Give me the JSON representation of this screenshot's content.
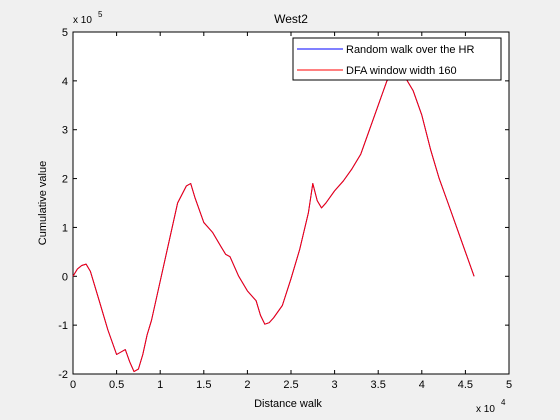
{
  "chart_data": {
    "type": "line",
    "title": "West2",
    "xlabel": "Distance walk",
    "ylabel": "Cumulative value",
    "x_multiplier_label": "x 10",
    "x_multiplier_exp": "4",
    "y_multiplier_label": "x 10",
    "y_multiplier_exp": "5",
    "xlim": [
      0,
      5
    ],
    "ylim": [
      -2,
      5
    ],
    "x_ticks": [
      0,
      0.5,
      1,
      1.5,
      2,
      2.5,
      3,
      3.5,
      4,
      4.5,
      5
    ],
    "x_tick_labels": [
      "0",
      "0.5",
      "1",
      "1.5",
      "2",
      "2.5",
      "3",
      "3.5",
      "4",
      "4.5",
      "5"
    ],
    "y_ticks": [
      -2,
      -1,
      0,
      1,
      2,
      3,
      4,
      5
    ],
    "y_tick_labels": [
      "-2",
      "-1",
      "0",
      "1",
      "2",
      "3",
      "4",
      "5"
    ],
    "grid": false,
    "legend_position": "top-right",
    "series": [
      {
        "name": "Random walk over the HR",
        "color": "#0000ff",
        "x": [
          0,
          0.05,
          0.1,
          0.15,
          0.2,
          0.3,
          0.4,
          0.5,
          0.55,
          0.6,
          0.65,
          0.7,
          0.75,
          0.8,
          0.85,
          0.9,
          1.0,
          1.1,
          1.2,
          1.3,
          1.35,
          1.4,
          1.5,
          1.55,
          1.6,
          1.7,
          1.75,
          1.8,
          1.9,
          2.0,
          2.1,
          2.15,
          2.2,
          2.25,
          2.3,
          2.4,
          2.5,
          2.6,
          2.7,
          2.75,
          2.8,
          2.85,
          2.9,
          3.0,
          3.1,
          3.2,
          3.3,
          3.4,
          3.5,
          3.6,
          3.7,
          3.75,
          3.8,
          3.9,
          4.0,
          4.1,
          4.2,
          4.3,
          4.4,
          4.5,
          4.6
        ],
        "y": [
          0,
          0.15,
          0.22,
          0.25,
          0.1,
          -0.5,
          -1.1,
          -1.6,
          -1.55,
          -1.5,
          -1.75,
          -1.95,
          -1.9,
          -1.6,
          -1.2,
          -0.9,
          -0.1,
          0.7,
          1.5,
          1.85,
          1.9,
          1.6,
          1.1,
          1.0,
          0.9,
          0.6,
          0.45,
          0.4,
          0.0,
          -0.3,
          -0.5,
          -0.8,
          -0.98,
          -0.95,
          -0.85,
          -0.6,
          -0.05,
          0.55,
          1.3,
          1.9,
          1.55,
          1.4,
          1.5,
          1.75,
          1.95,
          2.2,
          2.5,
          3.0,
          3.5,
          4.0,
          4.2,
          4.25,
          4.1,
          3.8,
          3.3,
          2.6,
          2.0,
          1.5,
          1.0,
          0.5,
          0.0
        ]
      },
      {
        "name": "DFA window width 160",
        "color": "#ff0000",
        "x": [
          0,
          0.05,
          0.1,
          0.15,
          0.2,
          0.3,
          0.4,
          0.5,
          0.55,
          0.6,
          0.65,
          0.7,
          0.75,
          0.8,
          0.85,
          0.9,
          1.0,
          1.1,
          1.2,
          1.3,
          1.35,
          1.4,
          1.5,
          1.55,
          1.6,
          1.7,
          1.75,
          1.8,
          1.9,
          2.0,
          2.1,
          2.15,
          2.2,
          2.25,
          2.3,
          2.4,
          2.5,
          2.6,
          2.7,
          2.75,
          2.8,
          2.85,
          2.9,
          3.0,
          3.1,
          3.2,
          3.3,
          3.4,
          3.5,
          3.6,
          3.7,
          3.75,
          3.8,
          3.9,
          4.0,
          4.1,
          4.2,
          4.3,
          4.4,
          4.5,
          4.6
        ],
        "y": [
          0,
          0.15,
          0.22,
          0.25,
          0.1,
          -0.5,
          -1.1,
          -1.6,
          -1.55,
          -1.5,
          -1.75,
          -1.95,
          -1.9,
          -1.6,
          -1.2,
          -0.9,
          -0.1,
          0.7,
          1.5,
          1.85,
          1.9,
          1.6,
          1.1,
          1.0,
          0.9,
          0.6,
          0.45,
          0.4,
          0.0,
          -0.3,
          -0.5,
          -0.8,
          -0.98,
          -0.95,
          -0.85,
          -0.6,
          -0.05,
          0.55,
          1.3,
          1.9,
          1.55,
          1.4,
          1.5,
          1.75,
          1.95,
          2.2,
          2.5,
          3.0,
          3.5,
          4.0,
          4.2,
          4.25,
          4.1,
          3.8,
          3.3,
          2.6,
          2.0,
          1.5,
          1.0,
          0.5,
          0.0
        ]
      }
    ]
  }
}
